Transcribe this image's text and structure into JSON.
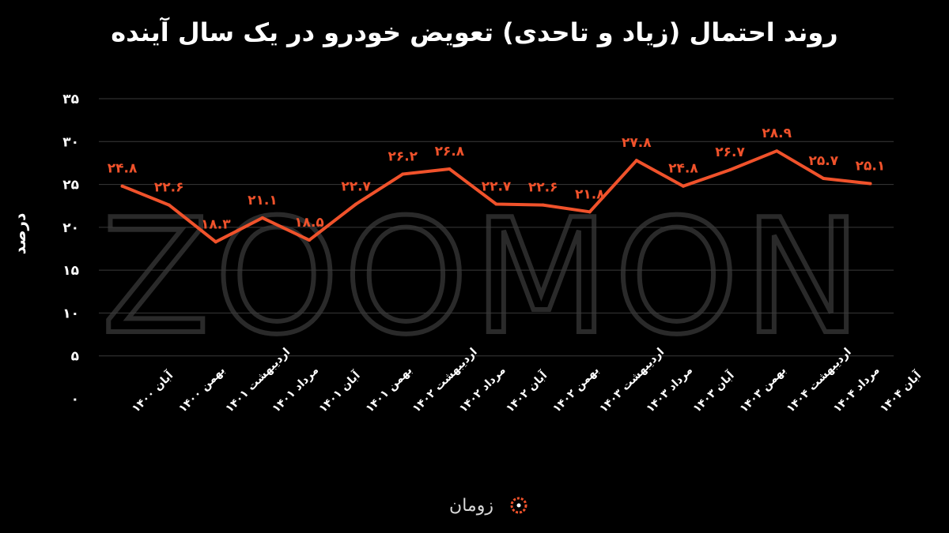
{
  "chart_data": {
    "type": "line",
    "title": "روند احتمال (زیاد و تاحدی) تعویض خودرو در یک سال آینده",
    "ylabel": "درصد",
    "xlabel": "",
    "ylim": [
      0,
      35
    ],
    "yticks": [
      0,
      5,
      10,
      15,
      20,
      25,
      30,
      35
    ],
    "ytick_labels": [
      "۰",
      "۵",
      "۱۰",
      "۱۵",
      "۲۰",
      "۲۵",
      "۳۰",
      "۳۵"
    ],
    "categories": [
      "آبان ۱۴۰۰",
      "بهمن ۱۴۰۰",
      "اردیبهشت ۱۴۰۱",
      "مرداد ۱۴۰۱",
      "آبان ۱۴۰۱",
      "بهمن ۱۴۰۱",
      "اردیبهشت ۱۴۰۲",
      "مرداد ۱۴۰۲",
      "آبان ۱۴۰۲",
      "بهمن ۱۴۰۲",
      "اردیبهشت ۱۴۰۳",
      "مرداد ۱۴۰۳",
      "آبان ۱۴۰۳",
      "بهمن ۱۴۰۳",
      "اردیبهشت ۱۴۰۴",
      "مرداد ۱۴۰۴",
      "آبان ۱۴۰۴"
    ],
    "series": [
      {
        "values": [
          24.8,
          22.6,
          18.3,
          21.1,
          18.5,
          22.7,
          26.2,
          26.8,
          22.7,
          22.6,
          21.8,
          27.8,
          24.8,
          26.7,
          28.9,
          25.7,
          25.1
        ],
        "labels": [
          "۲۴.۸",
          "۲۲.۶",
          "۱۸.۳",
          "۲۱.۱",
          "۱۸.۵",
          "۲۲.۷",
          "۲۶.۲",
          "۲۶.۸",
          "۲۲.۷",
          "۲۲.۶",
          "۲۱.۸",
          "۲۷.۸",
          "۲۴.۸",
          "۲۶.۷",
          "۲۸.۹",
          "۲۵.۷",
          "۲۵.۱"
        ],
        "color": "#f0522b"
      }
    ],
    "grid": true,
    "legend": "none",
    "watermark": "ZOOMON",
    "brand": "زومان",
    "colors": {
      "background": "#000000",
      "line": "#f0522b",
      "text": "#ffffff",
      "grid": "#3a3a3a"
    }
  }
}
